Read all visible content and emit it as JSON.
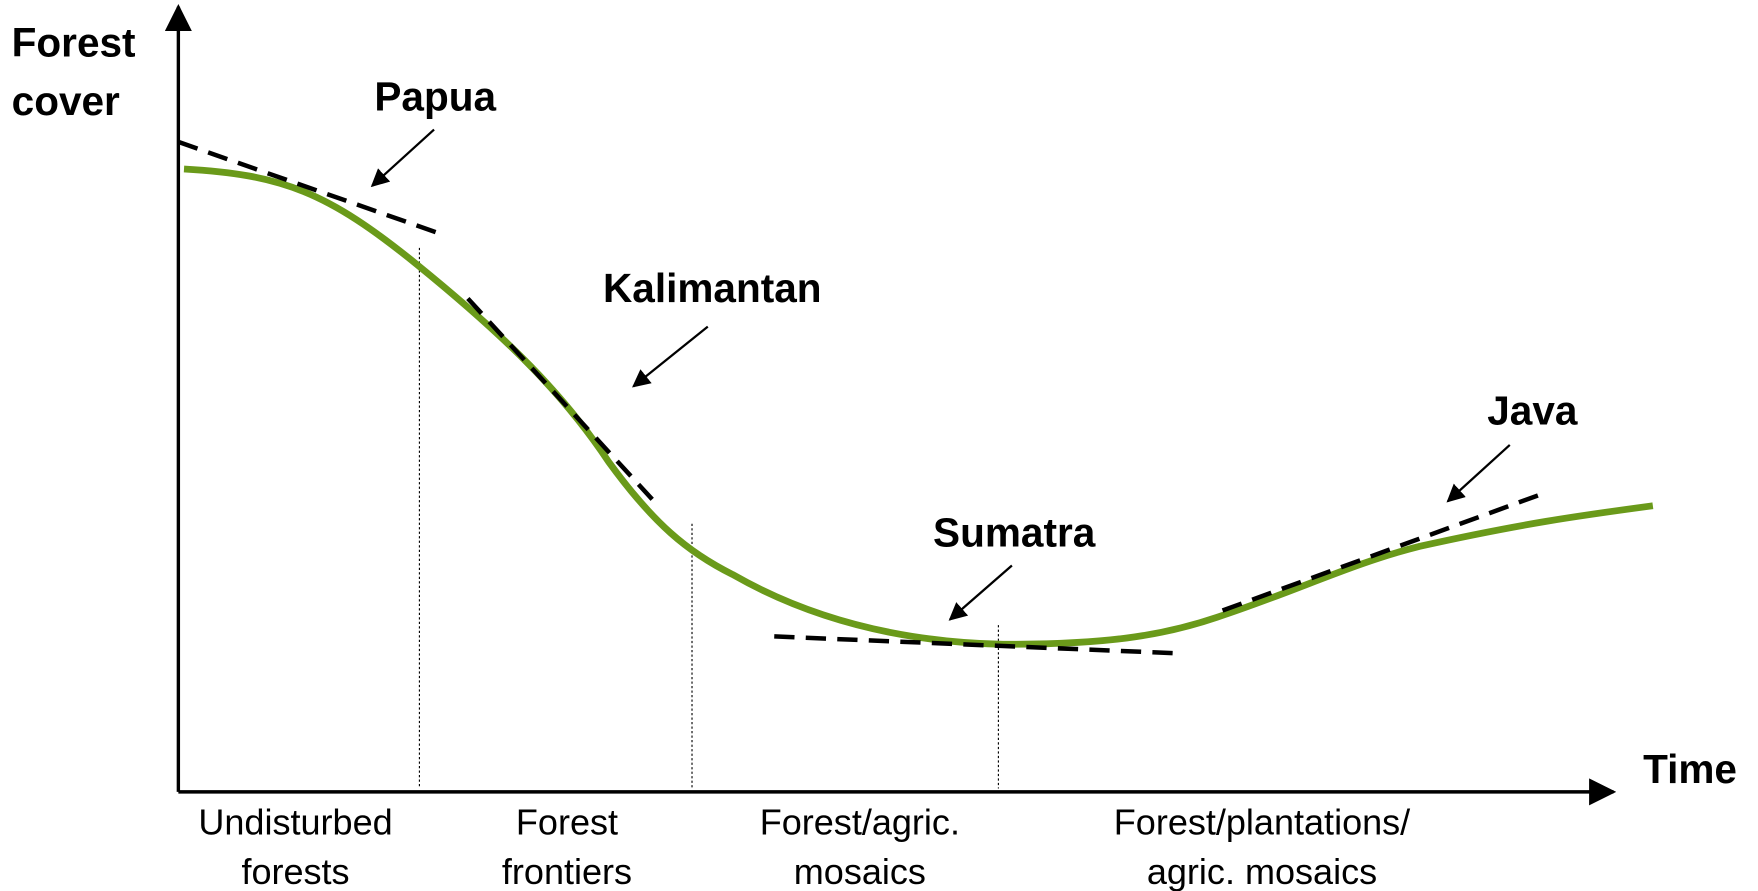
{
  "y_axis_label": [
    "Forest",
    "cover"
  ],
  "x_axis_label": "Time",
  "stages": [
    [
      "Undisturbed",
      "forests"
    ],
    [
      "Forest",
      "frontiers"
    ],
    [
      "Forest/agric.",
      "mosaics"
    ],
    [
      "Forest/plantations/",
      "agric. mosaics"
    ]
  ],
  "annotations": [
    "Papua",
    "Kalimantan",
    "Sumatra",
    "Java"
  ]
}
